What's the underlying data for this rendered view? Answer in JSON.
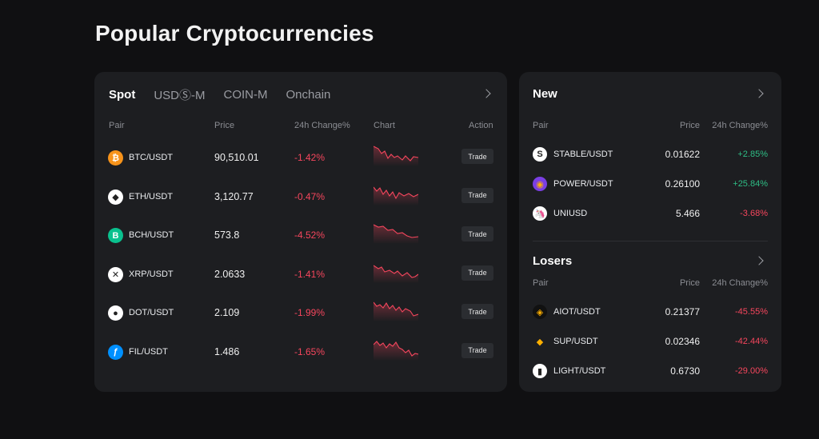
{
  "page_title": "Popular Cryptocurrencies",
  "spot": {
    "tabs": [
      "Spot",
      "USDⓈ-M",
      "COIN-M",
      "Onchain"
    ],
    "headers": {
      "pair": "Pair",
      "price": "Price",
      "change": "24h Change%",
      "chart": "Chart",
      "action": "Action"
    },
    "trade_label": "Trade",
    "rows": [
      {
        "pair": "BTC/USDT",
        "price": "90,510.01",
        "change": "-1.42%",
        "icon": "btc-icon",
        "icon_color": "#f7931a",
        "glyph": "₿"
      },
      {
        "pair": "ETH/USDT",
        "price": "3,120.77",
        "change": "-0.47%",
        "icon": "eth-icon",
        "icon_color": "#ffffff",
        "glyph": "◆"
      },
      {
        "pair": "BCH/USDT",
        "price": "573.8",
        "change": "-4.52%",
        "icon": "bch-icon",
        "icon_color": "#0ac18e",
        "glyph": "B"
      },
      {
        "pair": "XRP/USDT",
        "price": "2.0633",
        "change": "-1.41%",
        "icon": "xrp-icon",
        "icon_color": "#ffffff",
        "glyph": "✕"
      },
      {
        "pair": "DOT/USDT",
        "price": "2.109",
        "change": "-1.99%",
        "icon": "dot-icon",
        "icon_color": "#ffffff",
        "glyph": "●"
      },
      {
        "pair": "FIL/USDT",
        "price": "1.486",
        "change": "-1.65%",
        "icon": "fil-icon",
        "icon_color": "#0090ff",
        "glyph": "ƒ"
      }
    ]
  },
  "new": {
    "title": "New",
    "headers": {
      "pair": "Pair",
      "price": "Price",
      "change": "24h Change%"
    },
    "rows": [
      {
        "pair": "STABLE/USDT",
        "price": "0.01622",
        "change": "+2.85%",
        "icon": "stable-icon",
        "icon_color": "#ffffff",
        "glyph": "S"
      },
      {
        "pair": "POWER/USDT",
        "price": "0.26100",
        "change": "+25.84%",
        "icon": "power-icon",
        "icon_color": "#7b3fe4",
        "glyph": "◉"
      },
      {
        "pair": "UNIUSD",
        "price": "5.466",
        "change": "-3.68%",
        "icon": "uni-icon",
        "icon_color": "#ffffff",
        "glyph": "🦄"
      }
    ]
  },
  "losers": {
    "title": "Losers",
    "headers": {
      "pair": "Pair",
      "price": "Price",
      "change": "24h Change%"
    },
    "rows": [
      {
        "pair": "AIOT/USDT",
        "price": "0.21377",
        "change": "-45.55%",
        "icon": "aiot-icon",
        "icon_color": "#111111",
        "glyph": "◈"
      },
      {
        "pair": "SUP/USDT",
        "price": "0.02346",
        "change": "-42.44%",
        "icon": "sup-icon",
        "icon_color": "#1d1e21",
        "glyph": "◆"
      },
      {
        "pair": "LIGHT/USDT",
        "price": "0.6730",
        "change": "-29.00%",
        "icon": "light-icon",
        "icon_color": "#ffffff",
        "glyph": "▮"
      }
    ]
  },
  "colors": {
    "negative": "#f6465d",
    "positive": "#2ebd85",
    "card": "#1d1e21",
    "background": "#101012"
  }
}
